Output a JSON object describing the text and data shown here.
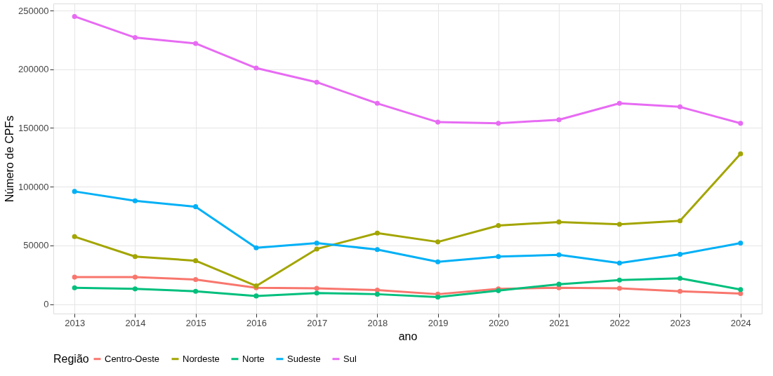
{
  "chart_data": {
    "type": "line",
    "xlabel": "ano",
    "ylabel": "Número de CPFs",
    "legend_title": "Região",
    "categories": [
      "2013",
      "2014",
      "2015",
      "2016",
      "2017",
      "2018",
      "2019",
      "2020",
      "2021",
      "2022",
      "2023",
      "2024"
    ],
    "series": [
      {
        "name": "Centro-Oeste",
        "color": "#f8766d",
        "values": [
          23000,
          23000,
          21000,
          14000,
          13500,
          12000,
          8500,
          13000,
          14000,
          13500,
          11000,
          9000
        ]
      },
      {
        "name": "Nordeste",
        "color": "#a3a500",
        "values": [
          57500,
          40500,
          37000,
          15500,
          47000,
          60500,
          53000,
          67000,
          70000,
          68000,
          71000,
          128000
        ]
      },
      {
        "name": "Norte",
        "color": "#00bf7d",
        "values": [
          14000,
          13000,
          11000,
          7000,
          9500,
          8500,
          6000,
          11500,
          17000,
          20500,
          22000,
          12500
        ]
      },
      {
        "name": "Sudeste",
        "color": "#00b0f6",
        "values": [
          96000,
          88000,
          83000,
          48000,
          52000,
          46500,
          36000,
          40500,
          42000,
          35000,
          42500,
          52000
        ]
      },
      {
        "name": "Sul",
        "color": "#e76bf3",
        "values": [
          245000,
          227000,
          222000,
          201000,
          189000,
          171000,
          155000,
          154000,
          157000,
          171000,
          168000,
          154000
        ]
      }
    ],
    "ylim": [
      -8000,
      256000
    ],
    "yticks": [
      0,
      50000,
      100000,
      150000,
      200000,
      250000
    ],
    "grid": true,
    "legend": "bottom",
    "marker": "circle",
    "line_style": "solid"
  }
}
